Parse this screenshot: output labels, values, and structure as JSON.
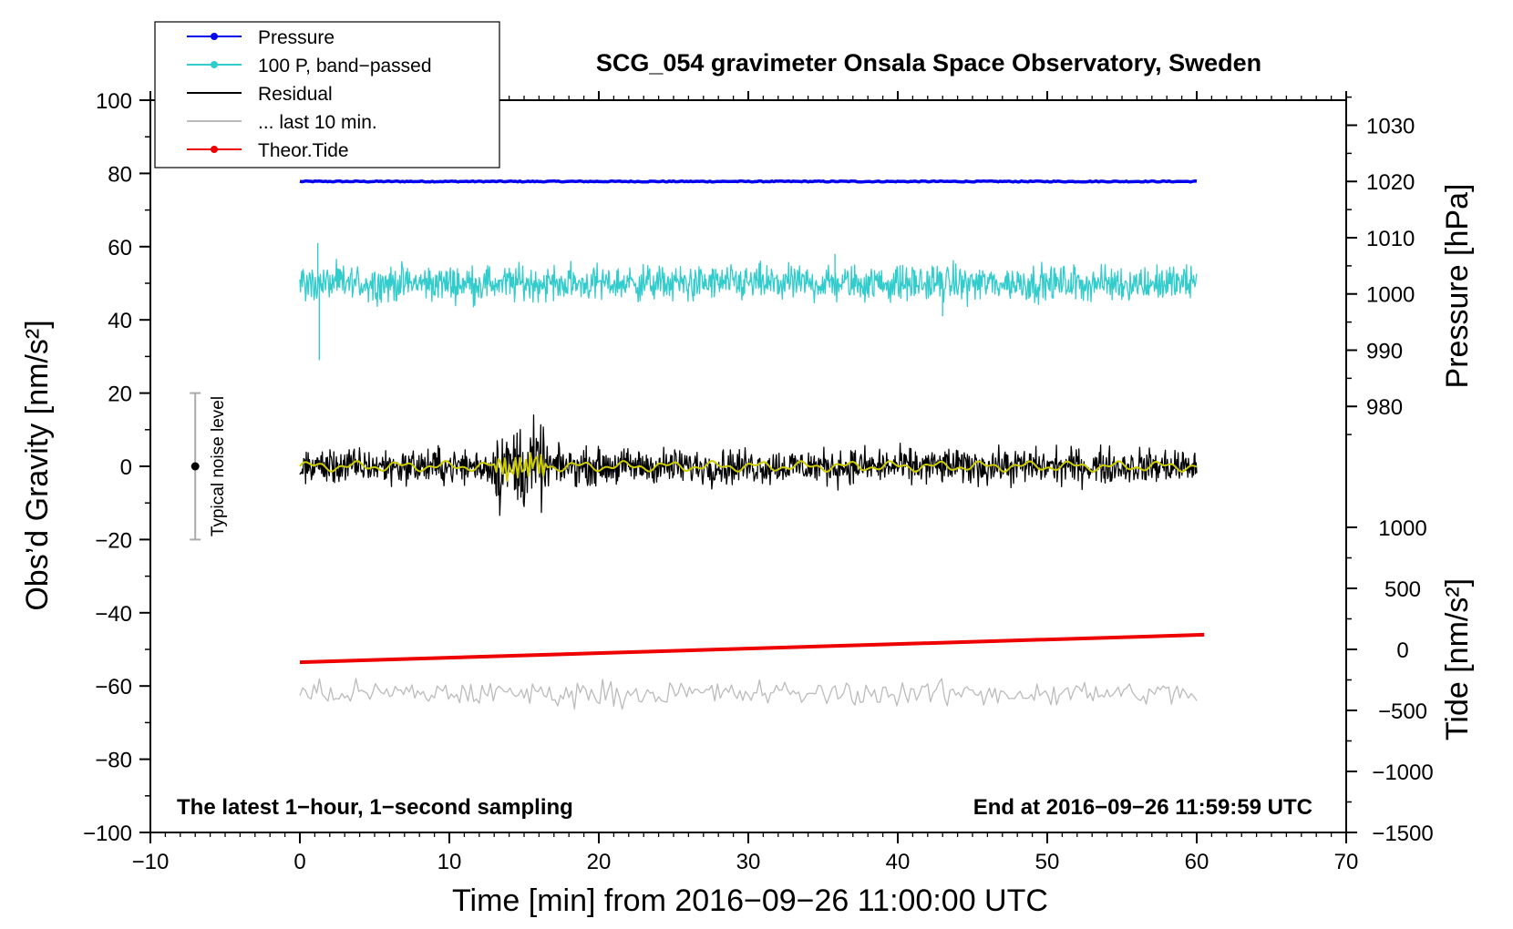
{
  "chart_data": {
    "type": "line",
    "title": "SCG_054 gravimeter Onsala Space Observatory, Sweden",
    "xlabel": "Time [min] from 2016−09−26 11:00:00 UTC",
    "ylabel_left": "Obs’d Gravity [nm/s²]",
    "ylabel_right_top": "Pressure [hPa]",
    "ylabel_right_bottom": "Tide [nm/s²]",
    "xlim": [
      -10,
      70
    ],
    "ylim": [
      -100,
      100
    ],
    "x_ticks": [
      -10,
      0,
      10,
      20,
      30,
      40,
      50,
      60,
      70
    ],
    "x_tick_labels": [
      "−10",
      "0",
      "10",
      "20",
      "30",
      "40",
      "50",
      "60",
      "70"
    ],
    "y_ticks": [
      -100,
      -80,
      -60,
      -40,
      -20,
      0,
      20,
      40,
      60,
      80,
      100
    ],
    "y_tick_labels": [
      "−100",
      "−80",
      "−60",
      "−40",
      "−20",
      "0",
      "20",
      "40",
      "60",
      "80",
      "100"
    ],
    "pressure_axis": {
      "ticks": [
        980,
        990,
        1000,
        1010,
        1020,
        1030
      ],
      "labels": [
        "980",
        "990",
        "1000",
        "1010",
        "1020",
        "1030"
      ],
      "ref_value": 1020,
      "ref_gravity": 77.8,
      "gravity_per_hpa": 1.536
    },
    "tide_axis": {
      "ticks": [
        -1500,
        -1000,
        -500,
        0,
        500,
        1000
      ],
      "labels": [
        "−1500",
        "−1000",
        "−500",
        "0",
        "500",
        "1000"
      ],
      "ref_value": 0,
      "ref_gravity": -50,
      "gravity_per_unit": 0.03333
    },
    "legend": [
      {
        "label": "Pressure",
        "color": "#0000ee",
        "marker": true
      },
      {
        "label": "100 P, band−passed",
        "color": "#33cccc",
        "marker": true
      },
      {
        "label": "Residual",
        "color": "#000000",
        "marker": false
      },
      {
        "label": "... last 10 min.",
        "color": "#bbbbbb",
        "marker": false
      },
      {
        "label": "Theor.Tide",
        "color": "#ee0000",
        "marker": true
      }
    ],
    "series": [
      {
        "name": "Pressure",
        "color": "#0000ee",
        "kind": "flat",
        "x_range": [
          0,
          60
        ],
        "level": 77.8,
        "amplitude": 0.3
      },
      {
        "name": "100 P, band−passed",
        "color": "#33cccc",
        "kind": "noise",
        "x_range": [
          0,
          60
        ],
        "level": 50,
        "amplitude": 4.5,
        "spikes": [
          {
            "x": 1.3,
            "value": 29
          },
          {
            "x": 1.2,
            "value": 61
          },
          {
            "x": 43,
            "value": 41
          },
          {
            "x": 35.8,
            "value": 58
          }
        ]
      },
      {
        "name": "Residual",
        "color": "#000000",
        "kind": "noise",
        "x_range": [
          0,
          60
        ],
        "level": 0,
        "amplitude": 4.5,
        "burst": {
          "x": [
            13,
            16.5
          ],
          "amplitude": 11
        }
      },
      {
        "name": "Residual smoothed",
        "color": "#cccc00",
        "kind": "smooth",
        "x_range": [
          0,
          60
        ],
        "level": 0,
        "amplitude": 1.5
      },
      {
        "name": "... last 10 min.",
        "color": "#bbbbbb",
        "kind": "noise",
        "x_range": [
          0,
          60
        ],
        "level": -62,
        "amplitude": 3.2
      },
      {
        "name": "Theor.Tide",
        "color": "#ee0000",
        "kind": "linear",
        "x": [
          0,
          60.5
        ],
        "tide_values": [
          -105,
          120
        ]
      }
    ],
    "noise_bar": {
      "x": -7,
      "center": 0,
      "low": -20,
      "high": 20,
      "label": "Typical noise level"
    },
    "footer_left": "The latest 1−hour, 1−second sampling",
    "footer_right": "End at 2016−09−26 11:59:59 UTC"
  }
}
